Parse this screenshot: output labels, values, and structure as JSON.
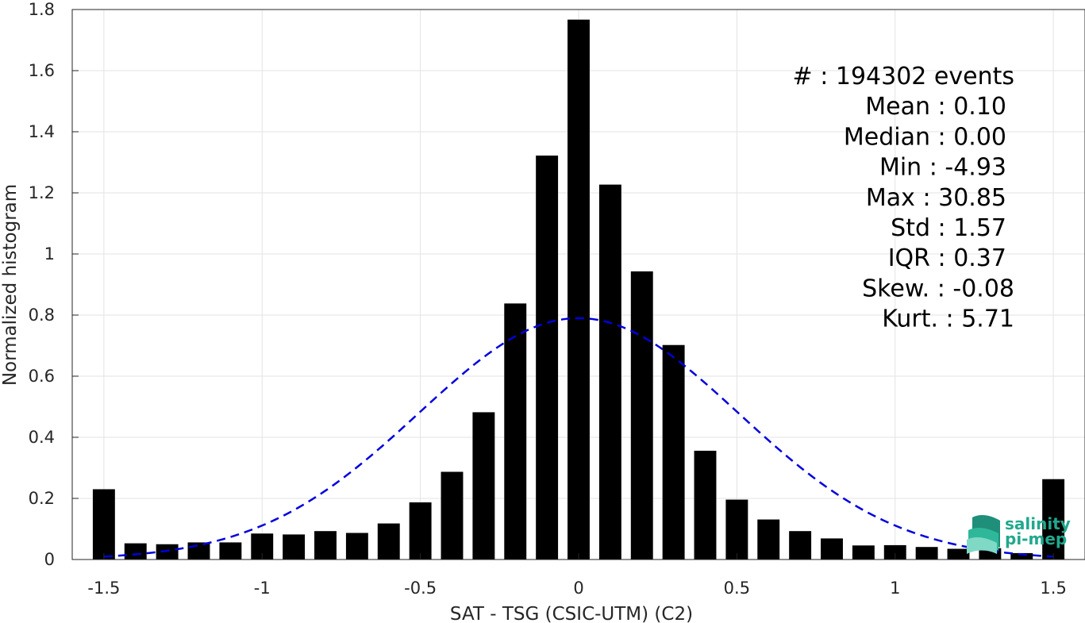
{
  "chart_data": {
    "type": "bar",
    "xlabel": "SAT - TSG (CSIC-UTM) (C2)",
    "ylabel": "Normalized histogram",
    "xlim": [
      -1.6,
      1.6
    ],
    "ylim": [
      0,
      1.8
    ],
    "x_ticks": [
      -1.5,
      -1,
      -0.5,
      0,
      0.5,
      1,
      1.5
    ],
    "x_tick_labels": [
      "-1.5",
      "-1",
      "-0.5",
      "0",
      "0.5",
      "1",
      "1.5"
    ],
    "y_ticks": [
      0,
      0.2,
      0.4,
      0.6,
      0.8,
      1,
      1.2,
      1.4,
      1.6,
      1.8
    ],
    "y_tick_labels": [
      "0",
      "0.2",
      "0.4",
      "0.6",
      "0.8",
      "1",
      "1.2",
      "1.4",
      "1.6",
      "1.8"
    ],
    "grid": true,
    "bar_width": 0.07,
    "bar_color": "#000000",
    "bars": {
      "x": [
        -1.5,
        -1.4,
        -1.3,
        -1.2,
        -1.1,
        -1.0,
        -0.9,
        -0.8,
        -0.7,
        -0.6,
        -0.5,
        -0.4,
        -0.3,
        -0.2,
        -0.1,
        0.0,
        0.1,
        0.2,
        0.3,
        0.4,
        0.5,
        0.6,
        0.7,
        0.8,
        0.9,
        1.0,
        1.1,
        1.2,
        1.3,
        1.4,
        1.5
      ],
      "values": [
        0.23,
        0.053,
        0.05,
        0.056,
        0.056,
        0.085,
        0.082,
        0.093,
        0.087,
        0.118,
        0.187,
        0.287,
        0.482,
        0.838,
        1.322,
        1.767,
        1.227,
        0.943,
        0.702,
        0.356,
        0.196,
        0.131,
        0.093,
        0.069,
        0.046,
        0.047,
        0.041,
        0.035,
        0.037,
        0.021,
        0.263
      ]
    },
    "fit_curve": {
      "style": "dashed",
      "color": "#0000dd",
      "mean": 0.0,
      "std": 0.505,
      "peak": 0.79,
      "x_range": [
        -1.5,
        1.5
      ]
    },
    "stats": [
      "#  : 194302 events",
      "Mean : 0.10",
      "Median : 0.00",
      "Min : -4.93",
      "Max : 30.85",
      "Std : 1.57",
      "IQR : 0.37",
      "Skew. : -0.08",
      "Kurt. : 5.71"
    ]
  },
  "logo": {
    "line1": "salinity",
    "line2": "pi-mep",
    "color": "#21a88e"
  }
}
